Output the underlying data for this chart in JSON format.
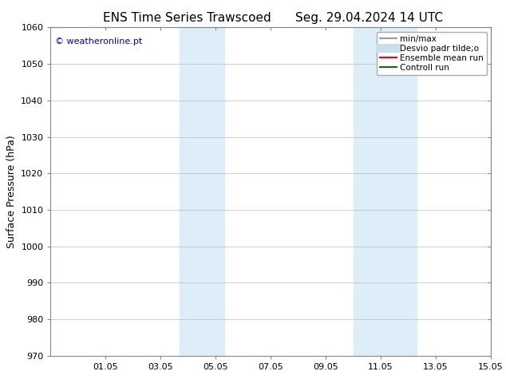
{
  "title_left": "ENS Time Series Trawscoed",
  "title_right": "Seg. 29.04.2024 14 UTC",
  "ylabel": "Surface Pressure (hPa)",
  "ylim": [
    970,
    1060
  ],
  "yticks": [
    970,
    980,
    990,
    1000,
    1010,
    1020,
    1030,
    1040,
    1050,
    1060
  ],
  "xtick_labels": [
    "01.05",
    "03.05",
    "05.05",
    "07.05",
    "09.05",
    "11.05",
    "13.05",
    "15.05"
  ],
  "xtick_positions": [
    2,
    4,
    6,
    8,
    10,
    12,
    14,
    16
  ],
  "xlim": [
    0,
    16
  ],
  "shaded_regions": [
    {
      "x_start": 4.7,
      "x_end": 6.3,
      "color": "#ddeef8"
    },
    {
      "x_start": 11.0,
      "x_end": 13.3,
      "color": "#ddeef8"
    }
  ],
  "copyright_text": "© weatheronline.pt",
  "copyright_color": "#0000cc",
  "legend_entries": [
    {
      "label": "min/max",
      "color": "#999999",
      "linewidth": 1.5,
      "linestyle": "-"
    },
    {
      "label": "Desvio padr tilde;o",
      "color": "#c8dff0",
      "linewidth": 8,
      "linestyle": "-"
    },
    {
      "label": "Ensemble mean run",
      "color": "#ff0000",
      "linewidth": 1.5,
      "linestyle": "-"
    },
    {
      "label": "Controll run",
      "color": "#007700",
      "linewidth": 1.5,
      "linestyle": "-"
    }
  ],
  "background_color": "#ffffff",
  "grid_color": "#bbbbbb",
  "title_fontsize": 11,
  "label_fontsize": 9,
  "tick_fontsize": 8,
  "legend_fontsize": 7.5,
  "copyright_fontsize": 8
}
